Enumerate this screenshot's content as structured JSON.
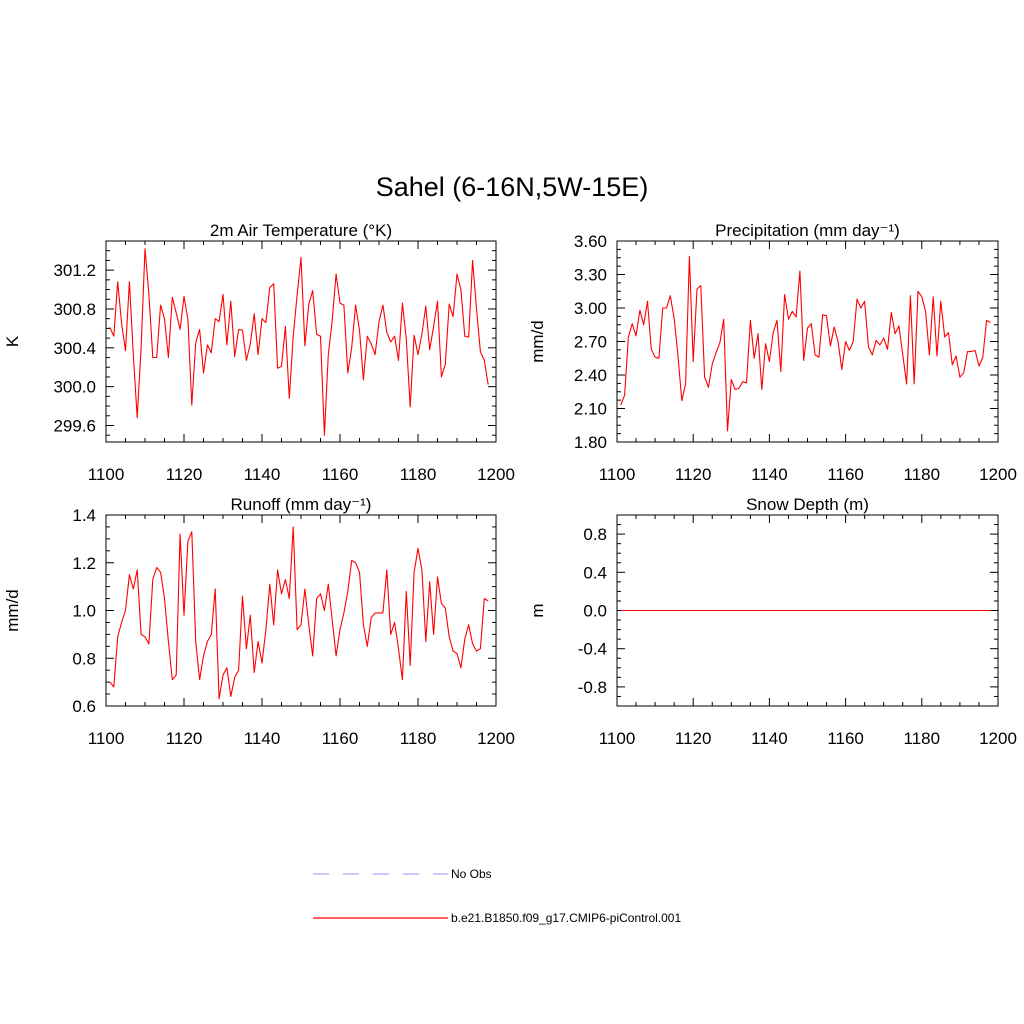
{
  "figure_title": "Sahel (6-16N,5W-15E)",
  "legend": {
    "obs_label": "No Obs",
    "obs_color": "#aaaaff",
    "model_label": "b.e21.B1850.f09_g17.CMIP6-piControl.001",
    "model_color": "#ff0000"
  },
  "chart_data": [
    {
      "type": "line",
      "title": "2m Air Temperature (°K)",
      "ylabel": "K",
      "xlim": [
        1100,
        1200
      ],
      "ylim": [
        299.43,
        301.5
      ],
      "xticks": [
        "1100",
        "1120",
        "1140",
        "1160",
        "1180",
        "1200"
      ],
      "yticks": [
        "299.6",
        "300.0",
        "300.4",
        "300.8",
        "301.2"
      ],
      "series": [
        {
          "x": [
            1101,
            1102,
            1103,
            1104,
            1105,
            1106,
            1107,
            1108,
            1109,
            1110,
            1111,
            1112,
            1113,
            1114,
            1115,
            1116,
            1117,
            1118,
            1119,
            1120,
            1121,
            1122,
            1123,
            1124,
            1125,
            1126,
            1127,
            1128,
            1129,
            1130,
            1131,
            1132,
            1133,
            1134,
            1135,
            1136,
            1137,
            1138,
            1139,
            1140,
            1141,
            1142,
            1143,
            1144,
            1145,
            1146,
            1147,
            1148,
            1149,
            1150,
            1151,
            1152,
            1153,
            1154,
            1155,
            1156,
            1157,
            1158,
            1159,
            1160,
            1161,
            1162,
            1163,
            1164,
            1165,
            1166,
            1167,
            1168,
            1169,
            1170,
            1171,
            1172,
            1173,
            1174,
            1175,
            1176,
            1177,
            1178,
            1179,
            1180,
            1181,
            1182,
            1183,
            1184,
            1185,
            1186,
            1187,
            1188,
            1189,
            1190,
            1191,
            1192,
            1193,
            1194,
            1195,
            1196,
            1197,
            1198
          ],
          "values": [
            300.61,
            300.52,
            301.08,
            300.65,
            300.37,
            301.08,
            300.33,
            299.68,
            300.4,
            301.42,
            300.95,
            300.3,
            300.3,
            300.84,
            300.7,
            300.3,
            300.92,
            300.76,
            300.59,
            300.93,
            300.69,
            299.81,
            300.45,
            300.59,
            300.14,
            300.43,
            300.35,
            300.7,
            300.67,
            300.95,
            300.43,
            300.88,
            300.31,
            300.59,
            300.58,
            300.27,
            300.44,
            300.75,
            300.33,
            300.7,
            300.66,
            301.02,
            301.06,
            300.19,
            300.21,
            300.62,
            299.88,
            300.52,
            300.94,
            301.33,
            300.42,
            300.85,
            300.99,
            300.54,
            300.52,
            299.5,
            300.33,
            300.68,
            301.16,
            300.86,
            300.84,
            300.14,
            300.4,
            300.84,
            300.58,
            300.07,
            300.52,
            300.44,
            300.33,
            300.67,
            300.84,
            300.56,
            300.46,
            300.52,
            300.27,
            300.86,
            300.49,
            299.79,
            300.53,
            300.33,
            300.54,
            300.83,
            300.38,
            300.62,
            300.88,
            300.1,
            300.23,
            300.85,
            300.72,
            301.16,
            301.0,
            300.52,
            300.51,
            301.3,
            300.8,
            300.36,
            300.27,
            300.02
          ],
          "color": "#ff0000"
        }
      ]
    },
    {
      "type": "line",
      "title": "Precipitation (mm day⁻¹)",
      "ylabel": "mm/d",
      "xlim": [
        1100,
        1200
      ],
      "ylim": [
        1.8,
        3.6
      ],
      "xticks": [
        "1100",
        "1120",
        "1140",
        "1160",
        "1180",
        "1200"
      ],
      "yticks": [
        "1.80",
        "2.10",
        "2.40",
        "2.70",
        "3.00",
        "3.30",
        "3.60"
      ],
      "series": [
        {
          "x": [
            1101,
            1102,
            1103,
            1104,
            1105,
            1106,
            1107,
            1108,
            1109,
            1110,
            1111,
            1112,
            1113,
            1114,
            1115,
            1116,
            1117,
            1118,
            1119,
            1120,
            1121,
            1122,
            1123,
            1124,
            1125,
            1126,
            1127,
            1128,
            1129,
            1130,
            1131,
            1132,
            1133,
            1134,
            1135,
            1136,
            1137,
            1138,
            1139,
            1140,
            1141,
            1142,
            1143,
            1144,
            1145,
            1146,
            1147,
            1148,
            1149,
            1150,
            1151,
            1152,
            1153,
            1154,
            1155,
            1156,
            1157,
            1158,
            1159,
            1160,
            1161,
            1162,
            1163,
            1164,
            1165,
            1166,
            1167,
            1168,
            1169,
            1170,
            1171,
            1172,
            1173,
            1174,
            1175,
            1176,
            1177,
            1178,
            1179,
            1180,
            1181,
            1182,
            1183,
            1184,
            1185,
            1186,
            1187,
            1188,
            1189,
            1190,
            1191,
            1192,
            1193,
            1194,
            1195,
            1196,
            1197,
            1198
          ],
          "values": [
            2.13,
            2.22,
            2.74,
            2.86,
            2.75,
            2.98,
            2.85,
            3.06,
            2.63,
            2.56,
            2.55,
            3.0,
            3.0,
            3.11,
            2.91,
            2.57,
            2.17,
            2.32,
            3.46,
            2.52,
            3.17,
            3.2,
            2.38,
            2.29,
            2.5,
            2.6,
            2.69,
            2.9,
            1.9,
            2.36,
            2.27,
            2.28,
            2.34,
            2.33,
            2.89,
            2.55,
            2.77,
            2.27,
            2.68,
            2.52,
            2.78,
            2.89,
            2.43,
            3.12,
            2.9,
            2.97,
            2.92,
            3.33,
            2.53,
            2.82,
            2.86,
            2.58,
            2.56,
            2.94,
            2.93,
            2.66,
            2.83,
            2.7,
            2.45,
            2.7,
            2.62,
            2.7,
            3.08,
            3.0,
            3.06,
            2.65,
            2.58,
            2.71,
            2.67,
            2.73,
            2.63,
            2.96,
            2.77,
            2.84,
            2.58,
            2.32,
            3.11,
            2.32,
            3.15,
            3.1,
            2.97,
            2.58,
            3.1,
            2.57,
            3.06,
            2.74,
            2.78,
            2.49,
            2.57,
            2.38,
            2.42,
            2.61,
            2.61,
            2.62,
            2.48,
            2.56,
            2.89,
            2.87
          ],
          "color": "#ff0000"
        }
      ]
    },
    {
      "type": "line",
      "title": "Runoff (mm day⁻¹)",
      "ylabel": "mm/d",
      "xlim": [
        1100,
        1200
      ],
      "ylim": [
        0.6,
        1.4
      ],
      "xticks": [
        "1100",
        "1120",
        "1140",
        "1160",
        "1180",
        "1200"
      ],
      "yticks": [
        "0.6",
        "0.8",
        "1.0",
        "1.2",
        "1.4"
      ],
      "series": [
        {
          "x": [
            1101,
            1102,
            1103,
            1104,
            1105,
            1106,
            1107,
            1108,
            1109,
            1110,
            1111,
            1112,
            1113,
            1114,
            1115,
            1116,
            1117,
            1118,
            1119,
            1120,
            1121,
            1122,
            1123,
            1124,
            1125,
            1126,
            1127,
            1128,
            1129,
            1130,
            1131,
            1132,
            1133,
            1134,
            1135,
            1136,
            1137,
            1138,
            1139,
            1140,
            1141,
            1142,
            1143,
            1144,
            1145,
            1146,
            1147,
            1148,
            1149,
            1150,
            1151,
            1152,
            1153,
            1154,
            1155,
            1156,
            1157,
            1158,
            1159,
            1160,
            1161,
            1162,
            1163,
            1164,
            1165,
            1166,
            1167,
            1168,
            1169,
            1170,
            1171,
            1172,
            1173,
            1174,
            1175,
            1176,
            1177,
            1178,
            1179,
            1180,
            1181,
            1182,
            1183,
            1184,
            1185,
            1186,
            1187,
            1188,
            1189,
            1190,
            1191,
            1192,
            1193,
            1194,
            1195,
            1196,
            1197,
            1198
          ],
          "values": [
            0.7,
            0.68,
            0.89,
            0.95,
            1.0,
            1.15,
            1.09,
            1.17,
            0.9,
            0.89,
            0.86,
            1.13,
            1.18,
            1.16,
            1.05,
            0.87,
            0.71,
            0.73,
            1.32,
            0.98,
            1.29,
            1.33,
            0.87,
            0.71,
            0.81,
            0.87,
            0.9,
            1.09,
            0.63,
            0.73,
            0.76,
            0.64,
            0.72,
            0.75,
            1.06,
            0.84,
            0.98,
            0.74,
            0.87,
            0.78,
            0.92,
            1.11,
            0.94,
            1.17,
            1.07,
            1.13,
            1.05,
            1.35,
            0.92,
            0.94,
            1.09,
            0.94,
            0.81,
            1.05,
            1.07,
            1.0,
            1.11,
            0.96,
            0.81,
            0.92,
            0.99,
            1.08,
            1.21,
            1.2,
            1.16,
            0.94,
            0.85,
            0.97,
            0.99,
            0.99,
            0.99,
            1.17,
            0.9,
            0.95,
            0.84,
            0.71,
            1.08,
            0.77,
            1.16,
            1.26,
            1.17,
            0.87,
            1.12,
            0.9,
            1.14,
            1.03,
            1.01,
            0.89,
            0.83,
            0.82,
            0.76,
            0.88,
            0.94,
            0.86,
            0.83,
            0.84,
            1.05,
            1.04
          ],
          "color": "#ff0000"
        }
      ]
    },
    {
      "type": "line",
      "title": "Snow Depth (m)",
      "ylabel": "m",
      "xlim": [
        1100,
        1200
      ],
      "ylim": [
        -1.0,
        1.0
      ],
      "xticks": [
        "1100",
        "1120",
        "1140",
        "1160",
        "1180",
        "1200"
      ],
      "yticks": [
        "-0.8",
        "-0.4",
        "0.0",
        "0.4",
        "0.8"
      ],
      "series": [
        {
          "x": [
            1101,
            1198
          ],
          "values": [
            0.0,
            0.0
          ],
          "color": "#ff0000"
        }
      ]
    }
  ]
}
